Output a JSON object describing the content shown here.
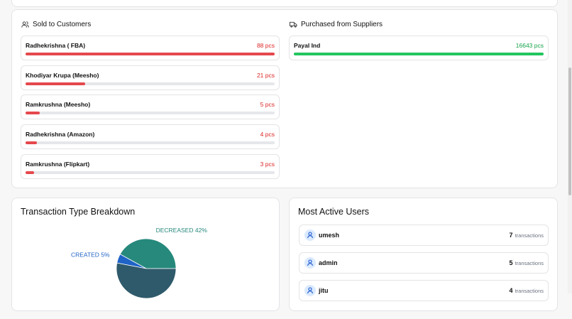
{
  "sold": {
    "title": "Sold to Customers",
    "items": [
      {
        "name": "Radhekrishna ( FBA)",
        "qty": 88,
        "qty_label": "88 pcs"
      },
      {
        "name": "Khodiyar Krupa (Meesho)",
        "qty": 21,
        "qty_label": "21 pcs"
      },
      {
        "name": "Ramkrushna (Meesho)",
        "qty": 5,
        "qty_label": "5 pcs"
      },
      {
        "name": "Radhekrishna (Amazon)",
        "qty": 4,
        "qty_label": "4 pcs"
      },
      {
        "name": "Ramkrushna (Flipkart)",
        "qty": 3,
        "qty_label": "3 pcs"
      }
    ]
  },
  "purchased": {
    "title": "Purchased from Suppliers",
    "items": [
      {
        "name": "Payal Ind",
        "qty": 16643,
        "qty_label": "16643 pcs"
      }
    ]
  },
  "chart_data": {
    "type": "pie",
    "title": "Transaction Type Breakdown",
    "categories": [
      "DECREASED",
      "CREATED",
      null
    ],
    "values": [
      42,
      5,
      53
    ],
    "value_labels": [
      "42%",
      "5%",
      null
    ],
    "colors": [
      "#26897c",
      "#1f63c6",
      "#2f5a6b"
    ]
  },
  "active_users": {
    "title": "Most Active Users",
    "users": [
      {
        "name": "umesh",
        "count": 7,
        "unit": "transactions"
      },
      {
        "name": "admin",
        "count": 5,
        "unit": "transactions"
      },
      {
        "name": "jitu",
        "count": 4,
        "unit": "transactions"
      }
    ]
  }
}
